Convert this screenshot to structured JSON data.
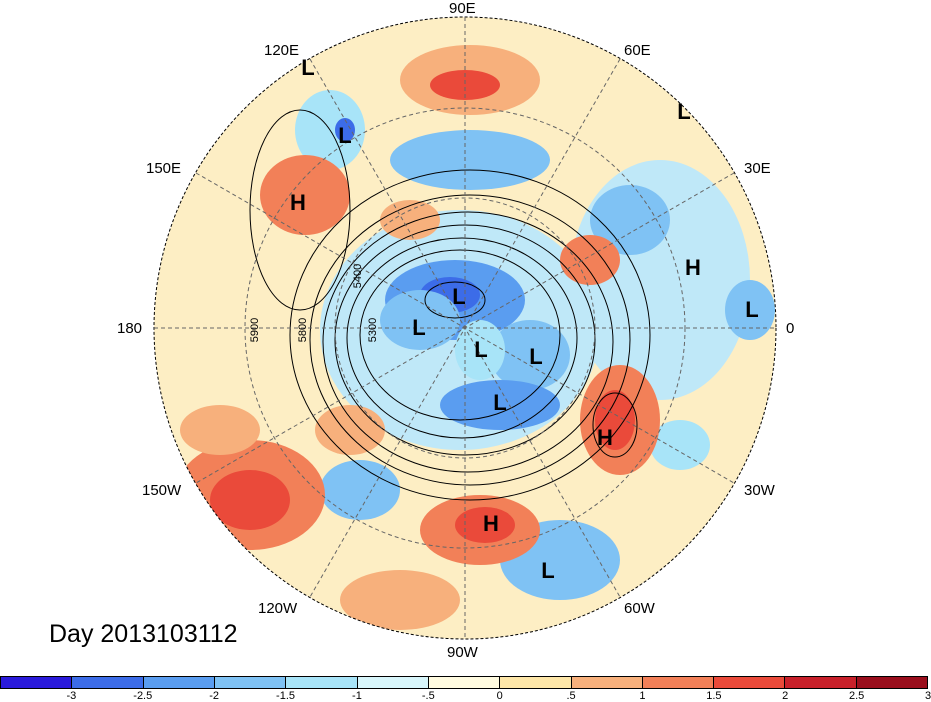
{
  "map": {
    "projection": "polar stereographic (north pole)",
    "field": "500 hPa geopotential height contours with standardized anomaly shading",
    "longitude_labels": [
      {
        "text": "90E"
      },
      {
        "text": "60E"
      },
      {
        "text": "30E"
      },
      {
        "text": "0"
      },
      {
        "text": "30W"
      },
      {
        "text": "60W"
      },
      {
        "text": "90W"
      },
      {
        "text": "120W"
      },
      {
        "text": "150W"
      },
      {
        "text": "180"
      },
      {
        "text": "150E"
      },
      {
        "text": "120E"
      }
    ],
    "contour_labels": [
      {
        "text": "5400"
      },
      {
        "text": "5300"
      },
      {
        "text": "5800"
      },
      {
        "text": "5900"
      }
    ],
    "markers": [
      {
        "text": "L"
      },
      {
        "text": "L"
      },
      {
        "text": "L"
      },
      {
        "text": "H"
      },
      {
        "text": "H"
      },
      {
        "text": "L"
      },
      {
        "text": "L"
      },
      {
        "text": "L"
      },
      {
        "text": "L"
      },
      {
        "text": "L"
      },
      {
        "text": "L"
      },
      {
        "text": "H"
      },
      {
        "text": "H"
      },
      {
        "text": "L"
      }
    ]
  },
  "day_label": "Day 2013103112",
  "colorbar": {
    "colors": [
      "#2a1adb",
      "#3c6ce8",
      "#5a9df0",
      "#7fc2f4",
      "#a8e4f8",
      "#d8f6fb",
      "#fffbe0",
      "#fde6a8",
      "#f7b07c",
      "#f28058",
      "#ea4a3a",
      "#c8202a",
      "#9a0e1c"
    ],
    "tick_labels": [
      "-3",
      "-2.5",
      "-2",
      "-1.5",
      "-1",
      "-.5",
      "0",
      ".5",
      "1",
      "1.5",
      "2",
      "2.5",
      "3"
    ]
  }
}
